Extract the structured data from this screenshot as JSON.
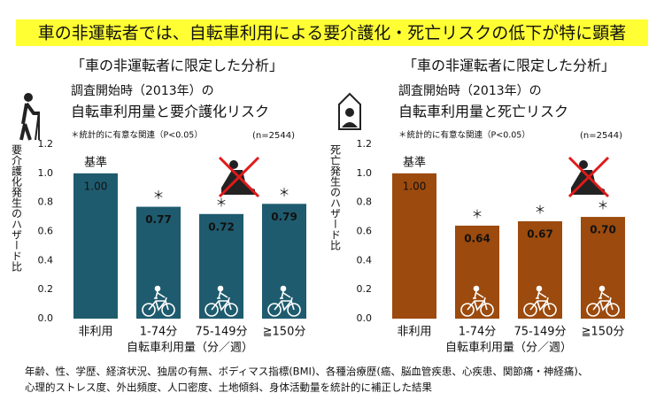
{
  "header": {
    "title": "車の非運転者では、自転車利用による要介護化・死亡リスクの低下が特に顕著"
  },
  "chart_data": [
    {
      "type": "bar",
      "subtitle": "「車の非運転者に限定した分析」",
      "title_lines": [
        "調査開始時（2013年）の",
        "自転車利用量と要介護化リスク"
      ],
      "note": "＊統計的に有意な関連（P<0.05）",
      "sample_size": "(n=2544)",
      "y_label": "要介護化発生のハザード比",
      "x_label": "自転車利用量（分／週）",
      "categories": [
        "非利用",
        "1-74分",
        "75-149分",
        "≧150分"
      ],
      "values": [
        1.0,
        0.77,
        0.72,
        0.79
      ],
      "value_labels": [
        "1.00",
        "0.77",
        "0.72",
        "0.79"
      ],
      "reference_label": "基準",
      "significance_mark": "＊",
      "significant": [
        false,
        true,
        true,
        true
      ],
      "color": "#1f5b6e",
      "ylim": [
        0,
        1.2
      ],
      "yticks": [
        {
          "value": 0,
          "label": "0.0"
        },
        {
          "value": 0.2,
          "label": "0.2"
        },
        {
          "value": 0.4,
          "label": "0.4"
        },
        {
          "value": 0.6,
          "label": "0.6"
        },
        {
          "value": 0.8,
          "label": "0.8"
        },
        {
          "value": 1,
          "label": "1.0"
        },
        {
          "value": 1.2,
          "label": "1.2"
        }
      ]
    },
    {
      "type": "bar",
      "subtitle": "「車の非運転者に限定した分析」",
      "title_lines": [
        "調査開始時（2013年）の",
        "自転車利用量と死亡リスク"
      ],
      "note": "＊統計的に有意な関連（P<0.05）",
      "sample_size": "(n=2544)",
      "y_label": "死亡発生のハザード比",
      "x_label": "自転車利用量（分／週）",
      "categories": [
        "非利用",
        "1-74分",
        "75-149分",
        "≧150分"
      ],
      "values": [
        1.0,
        0.64,
        0.67,
        0.7
      ],
      "value_labels": [
        "1.00",
        "0.64",
        "0.67",
        "0.70"
      ],
      "reference_label": "基準",
      "significance_mark": "＊",
      "significant": [
        false,
        true,
        true,
        true
      ],
      "color": "#9c4a0d",
      "ylim": [
        0,
        1.2
      ],
      "yticks": [
        {
          "value": 0,
          "label": "0.0"
        },
        {
          "value": 0.2,
          "label": "0.2"
        },
        {
          "value": 0.4,
          "label": "0.4"
        },
        {
          "value": 0.6,
          "label": "0.6"
        },
        {
          "value": 0.8,
          "label": "0.8"
        },
        {
          "value": 1,
          "label": "1.0"
        },
        {
          "value": 1.2,
          "label": "1.2"
        }
      ]
    }
  ],
  "footnote": [
    "年齢、性、学歴、経済状況、独居の有無、ボディマス指標(BMI)、各種治療歴(癌、脳血管疾患、心疾患、関節痛・神経痛)、",
    "心理的ストレス度、外出頻度、人口密度、土地傾斜、身体活動量を統計的に補正した結果"
  ]
}
